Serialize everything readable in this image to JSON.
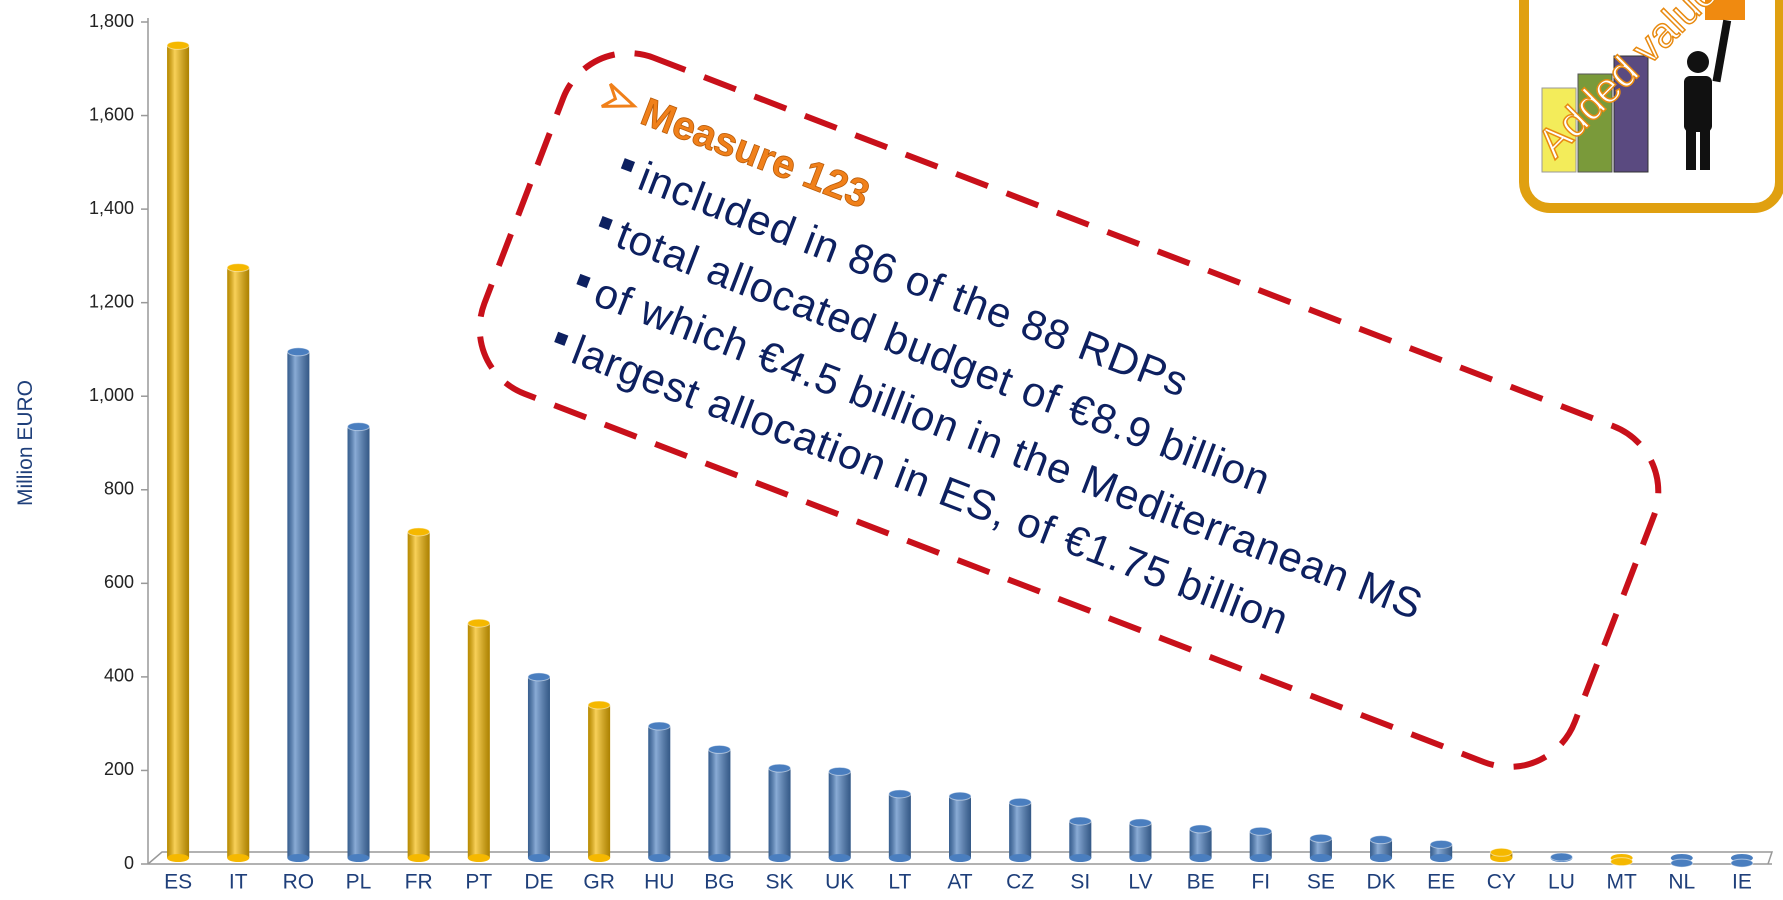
{
  "chart_data": {
    "type": "bar",
    "y_label": "Million EURO",
    "categories": [
      "ES",
      "IT",
      "RO",
      "PL",
      "FR",
      "PT",
      "DE",
      "GR",
      "HU",
      "BG",
      "SK",
      "UK",
      "LT",
      "AT",
      "CZ",
      "SI",
      "LV",
      "BE",
      "FI",
      "SE",
      "DK",
      "EE",
      "CY",
      "LU",
      "MT",
      "NL",
      "IE"
    ],
    "values": [
      1750,
      1275,
      1095,
      935,
      710,
      515,
      400,
      340,
      295,
      245,
      205,
      198,
      150,
      145,
      132,
      92,
      88,
      75,
      70,
      55,
      52,
      42,
      25,
      15,
      5,
      2,
      2
    ],
    "colors": [
      "#f5b800",
      "#f5b800",
      "#4a7ebf",
      "#4a7ebf",
      "#f5b800",
      "#f5b800",
      "#4a7ebf",
      "#f5b800",
      "#4a7ebf",
      "#4a7ebf",
      "#4a7ebf",
      "#4a7ebf",
      "#4a7ebf",
      "#4a7ebf",
      "#4a7ebf",
      "#4a7ebf",
      "#4a7ebf",
      "#4a7ebf",
      "#4a7ebf",
      "#4a7ebf",
      "#4a7ebf",
      "#4a7ebf",
      "#f5b800",
      "#4a7ebf",
      "#f5b800",
      "#4a7ebf",
      "#4a7ebf"
    ],
    "ylim": [
      0,
      1800
    ],
    "yticks": [
      0,
      200,
      400,
      600,
      800,
      {
        "value": 1000,
        "label": "1,000"
      },
      {
        "value": 1200,
        "label": "1,200"
      },
      {
        "value": 1400,
        "label": "1,400"
      },
      {
        "value": 1600,
        "label": "1,600"
      },
      {
        "value": 1800,
        "label": "1,800"
      }
    ]
  },
  "annotation": {
    "title": "Measure 123",
    "bullets": [
      "included in 86 of the 88 RDPs",
      "total allocated budget of €8.9 billion",
      "of which €4.5 billion in the Mediterranean MS",
      "largest allocation in ES, of €1.75 billion"
    ]
  },
  "badge": {
    "text": "Added value"
  }
}
